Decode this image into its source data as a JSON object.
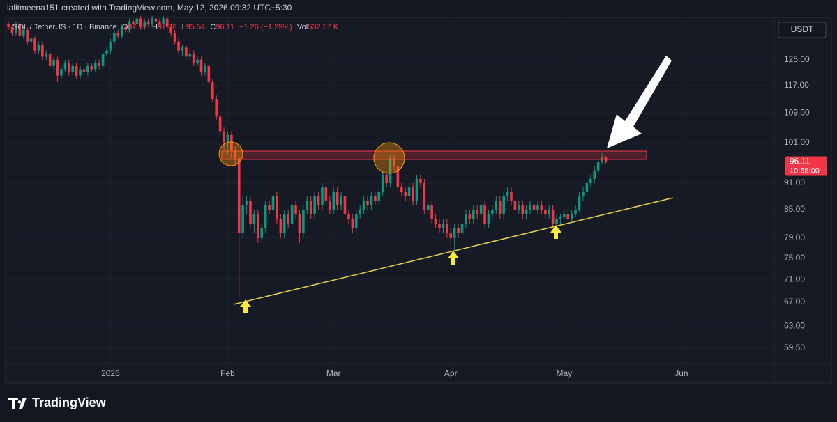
{
  "header": "lalitmeena151 created with TradingView.com, May 12, 2026 09:32 UTC+5:30",
  "brand": "TradingView",
  "chart_data": {
    "type": "candlestick",
    "legend": {
      "symbol": "SOL / TetherUS · 1D · Binance",
      "o_label": "O",
      "o": "97.37",
      "h_label": "H",
      "h": "97.68",
      "l_label": "L",
      "l": "95.54",
      "c_label": "C",
      "c": "96.11",
      "change": "−1.26 (−1.29%)",
      "vol_label": "Vol",
      "vol": "532.57 K"
    },
    "currency": "USDT",
    "countdown": "19:58:00",
    "up_color": "#089981",
    "down_color": "#f23645",
    "log_scale": true,
    "grid": true,
    "xlim": [
      -0.75,
      202.55
    ],
    "xticks": [
      {
        "value": 27,
        "label": "2026"
      },
      {
        "value": 58,
        "label": "Feb"
      },
      {
        "value": 86,
        "label": "Mar"
      },
      {
        "value": 117,
        "label": "Apr"
      },
      {
        "value": 147,
        "label": "May"
      },
      {
        "value": 178,
        "label": "Jun"
      }
    ],
    "ylim": [
      57.2,
      139.4
    ],
    "yticks": [
      {
        "value": 125,
        "label": "125.00"
      },
      {
        "value": 117,
        "label": "117.00"
      },
      {
        "value": 109,
        "label": "109.00"
      },
      {
        "value": 101,
        "label": "101.00"
      },
      {
        "value": 91,
        "label": "91.00"
      },
      {
        "value": 85,
        "label": "85.00"
      },
      {
        "value": 79,
        "label": "79.00"
      },
      {
        "value": 75,
        "label": "75.00"
      },
      {
        "value": 71,
        "label": "71.00"
      },
      {
        "value": 67,
        "label": "67.00"
      },
      {
        "value": 63,
        "label": "63.00"
      },
      {
        "value": 59.5,
        "label": "59.50"
      }
    ],
    "open": [
      137,
      136,
      134,
      137,
      133,
      135,
      131,
      132,
      128,
      130,
      126,
      127,
      123,
      125,
      120,
      122,
      124,
      121,
      123,
      120,
      122,
      121,
      123,
      122,
      124,
      123,
      127,
      128,
      131,
      134,
      133,
      136,
      135,
      138,
      137,
      139,
      136,
      138,
      137,
      139,
      138,
      137,
      139,
      136,
      134,
      131,
      128,
      129,
      126,
      127,
      124,
      125,
      121,
      123,
      118,
      113,
      108,
      104,
      101,
      103,
      99,
      97,
      80,
      86,
      87,
      82,
      84,
      79,
      81,
      86,
      85,
      88,
      83,
      80,
      84,
      82,
      86,
      84,
      80,
      85,
      87,
      84,
      88,
      86,
      90,
      87,
      85,
      89,
      86,
      88,
      84,
      83,
      81,
      84,
      85,
      87,
      86,
      88,
      87,
      89,
      93,
      91,
      97,
      95,
      90,
      89,
      88,
      90,
      87,
      92,
      91,
      85,
      86,
      83,
      82,
      81,
      82,
      80,
      79,
      81,
      80,
      82,
      84,
      83,
      85,
      84,
      86,
      82,
      84,
      85,
      87,
      84,
      88,
      89,
      87,
      85,
      86,
      84,
      85,
      86,
      85,
      86,
      85,
      84,
      85,
      82,
      83,
      83.5,
      84,
      83,
      84,
      85,
      88,
      89,
      91,
      92,
      94,
      96,
      97.37
    ],
    "high": [
      138,
      137,
      138,
      138,
      136,
      136,
      133,
      133,
      131,
      131,
      128,
      128,
      126,
      126,
      123,
      125,
      125,
      124,
      124,
      123,
      123,
      124,
      124,
      125,
      125,
      128,
      129,
      132,
      135,
      135,
      137,
      137,
      139,
      139,
      140,
      140,
      139,
      139,
      140,
      140,
      139,
      140,
      140,
      137,
      135,
      132,
      130,
      130,
      128,
      128,
      126,
      126,
      124,
      124,
      119,
      114,
      109,
      105,
      104,
      104,
      100,
      98,
      88,
      88,
      88,
      85,
      85,
      82,
      87,
      87,
      89,
      89,
      84,
      85,
      85,
      87,
      87,
      85,
      86,
      88,
      88,
      89,
      89,
      91,
      91,
      88,
      90,
      90,
      89,
      89,
      85,
      84,
      85,
      86,
      88,
      88,
      89,
      89,
      90,
      94,
      94,
      98,
      98,
      96,
      91,
      90,
      91,
      91,
      93,
      93,
      92,
      87,
      87,
      84,
      83,
      83,
      83,
      81,
      82,
      82,
      83,
      85,
      85,
      86,
      86,
      87,
      87,
      85,
      86,
      88,
      88,
      89,
      90,
      90,
      88,
      87,
      87,
      86,
      87,
      87,
      87,
      87,
      86,
      86,
      86,
      84,
      84,
      85,
      85,
      85,
      86,
      89,
      90,
      92,
      93,
      95,
      97,
      98.5,
      97.68
    ],
    "low": [
      135,
      133,
      133,
      132,
      132,
      130,
      130,
      127,
      127,
      125,
      125,
      122,
      122,
      118,
      119,
      121,
      120,
      120,
      119,
      119,
      120,
      120,
      121,
      121,
      122,
      122,
      126,
      127,
      130,
      132,
      132,
      134,
      134,
      136,
      136,
      135,
      135,
      136,
      136,
      137,
      136,
      136,
      135,
      133,
      130,
      127,
      126,
      125,
      125,
      123,
      123,
      120,
      120,
      117,
      112,
      107,
      103,
      99,
      98,
      97,
      95,
      68,
      79,
      84,
      81,
      80,
      78,
      78,
      80,
      84,
      84,
      82,
      79,
      79,
      81,
      81,
      83,
      78,
      79,
      84,
      83,
      83,
      85,
      85,
      86,
      84,
      84,
      85,
      85,
      83,
      82,
      80,
      80,
      83,
      84,
      85,
      85,
      86,
      86,
      88,
      90,
      90,
      94,
      89,
      88,
      87,
      87,
      86,
      86,
      90,
      84,
      84,
      82,
      81,
      80,
      80,
      79,
      78,
      76.5,
      79,
      79,
      81,
      82,
      82,
      83,
      83,
      81,
      81,
      83,
      84,
      83,
      83,
      87,
      86,
      84,
      84,
      83,
      83,
      84,
      84,
      84,
      84,
      83,
      83,
      81,
      81.5,
      82,
      83,
      82.5,
      82.5,
      83.5,
      84.5,
      87,
      88,
      90,
      91,
      93,
      95.5,
      95.54
    ],
    "close": [
      136,
      134,
      137,
      133,
      135,
      131,
      132,
      128,
      130,
      126,
      127,
      123,
      125,
      120,
      122,
      124,
      121,
      123,
      120,
      122,
      121,
      123,
      122,
      124,
      123,
      127,
      128,
      131,
      134,
      133,
      136,
      135,
      138,
      137,
      139,
      136,
      138,
      137,
      139,
      138,
      137,
      139,
      136,
      134,
      131,
      128,
      129,
      126,
      127,
      124,
      125,
      121,
      123,
      118,
      113,
      108,
      104,
      101,
      103,
      99,
      97,
      80,
      86,
      87,
      82,
      84,
      79,
      81,
      86,
      85,
      88,
      83,
      80,
      84,
      82,
      86,
      84,
      80,
      85,
      87,
      84,
      88,
      86,
      90,
      87,
      85,
      89,
      86,
      88,
      84,
      83,
      81,
      84,
      85,
      87,
      86,
      88,
      87,
      89,
      93,
      91,
      97,
      95,
      90,
      89,
      88,
      90,
      87,
      92,
      91,
      85,
      86,
      83,
      82,
      81,
      82,
      80,
      79,
      81,
      80,
      82,
      84,
      83,
      85,
      84,
      86,
      82,
      84,
      85,
      87,
      84,
      88,
      89,
      87,
      85,
      86,
      84,
      85,
      86,
      85,
      86,
      85,
      84,
      85,
      82,
      83,
      83.5,
      84,
      83,
      84,
      85,
      88,
      89,
      91,
      92,
      94,
      96,
      97.37,
      96.11
    ]
  }
}
